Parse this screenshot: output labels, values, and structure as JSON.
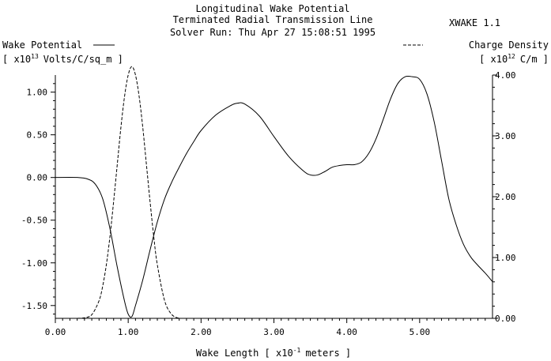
{
  "header": {
    "title_line1": "Longitudinal Wake Potential",
    "title_line2": "Terminated Radial Transmission Line",
    "title_line3": "Solver Run:  Thu Apr 27 15:08:51 1995",
    "app_label": "XWAKE 1.1"
  },
  "left_axis": {
    "name": "Wake Potential",
    "unit_open": "[ x10",
    "unit_exp": "13",
    "unit_close": "Volts/C/sq_m ]"
  },
  "right_axis": {
    "name": "Charge Density",
    "unit_open": "[ x10",
    "unit_exp": "12",
    "unit_close": "C/m ]"
  },
  "x_axis": {
    "label_open": "Wake Length  [ x10",
    "label_exp": "-1",
    "label_close": "meters ]"
  },
  "chart_data": {
    "type": "line",
    "title": "Longitudinal Wake Potential",
    "subtitle": "Terminated Radial Transmission Line",
    "xlabel": "Wake Length [ x10^-1 meters ]",
    "ylabel": "Wake Potential [ x10^13 Volts/C/sq_m ]",
    "y2label": "Charge Density [ x10^12 C/m ]",
    "xlim": [
      0,
      6
    ],
    "ylim": [
      -1.65,
      1.2
    ],
    "y2lim": [
      0,
      4
    ],
    "grid": false,
    "x_ticks": [
      "0.00",
      "1.00",
      "2.00",
      "3.00",
      "4.00",
      "5.00"
    ],
    "y_ticks": [
      "1.00",
      "0.50",
      "0.00",
      "-0.50",
      "-1.00",
      "-1.50"
    ],
    "y2_ticks": [
      "4.00",
      "3.00",
      "2.00",
      "1.00",
      "0.00"
    ],
    "series": [
      {
        "name": "Wake Potential",
        "axis": "left",
        "style": "solid",
        "x": [
          0.0,
          0.3,
          0.45,
          0.55,
          0.65,
          0.75,
          0.85,
          0.95,
          1.0,
          1.05,
          1.1,
          1.2,
          1.3,
          1.4,
          1.5,
          1.6,
          1.7,
          1.8,
          1.9,
          2.0,
          2.2,
          2.4,
          2.5,
          2.6,
          2.8,
          3.0,
          3.2,
          3.4,
          3.5,
          3.6,
          3.7,
          3.8,
          3.9,
          4.0,
          4.1,
          4.2,
          4.3,
          4.4,
          4.5,
          4.6,
          4.7,
          4.8,
          4.9,
          5.0,
          5.1,
          5.2,
          5.3,
          5.4,
          5.5,
          5.6,
          5.7,
          5.8,
          5.9,
          6.0
        ],
        "y": [
          0.0,
          0.0,
          -0.02,
          -0.08,
          -0.25,
          -0.6,
          -1.05,
          -1.45,
          -1.6,
          -1.63,
          -1.5,
          -1.2,
          -0.85,
          -0.52,
          -0.25,
          -0.05,
          0.12,
          0.28,
          0.42,
          0.55,
          0.73,
          0.84,
          0.87,
          0.86,
          0.72,
          0.48,
          0.25,
          0.08,
          0.03,
          0.03,
          0.07,
          0.12,
          0.14,
          0.15,
          0.15,
          0.18,
          0.28,
          0.45,
          0.68,
          0.92,
          1.1,
          1.18,
          1.18,
          1.15,
          0.98,
          0.65,
          0.2,
          -0.25,
          -0.55,
          -0.78,
          -0.93,
          -1.03,
          -1.12,
          -1.22
        ]
      },
      {
        "name": "Charge Density",
        "axis": "right",
        "style": "dashed",
        "x": [
          0.3,
          0.4,
          0.5,
          0.6,
          0.65,
          0.7,
          0.75,
          0.8,
          0.85,
          0.9,
          0.95,
          1.0,
          1.05,
          1.1,
          1.15,
          1.2,
          1.25,
          1.3,
          1.35,
          1.4,
          1.5,
          1.6,
          1.7
        ],
        "y": [
          0.0,
          0.01,
          0.06,
          0.29,
          0.53,
          0.88,
          1.35,
          1.92,
          2.53,
          3.14,
          3.65,
          4.0,
          4.14,
          4.0,
          3.65,
          3.14,
          2.53,
          1.92,
          1.35,
          0.88,
          0.29,
          0.06,
          0.0
        ]
      }
    ]
  }
}
